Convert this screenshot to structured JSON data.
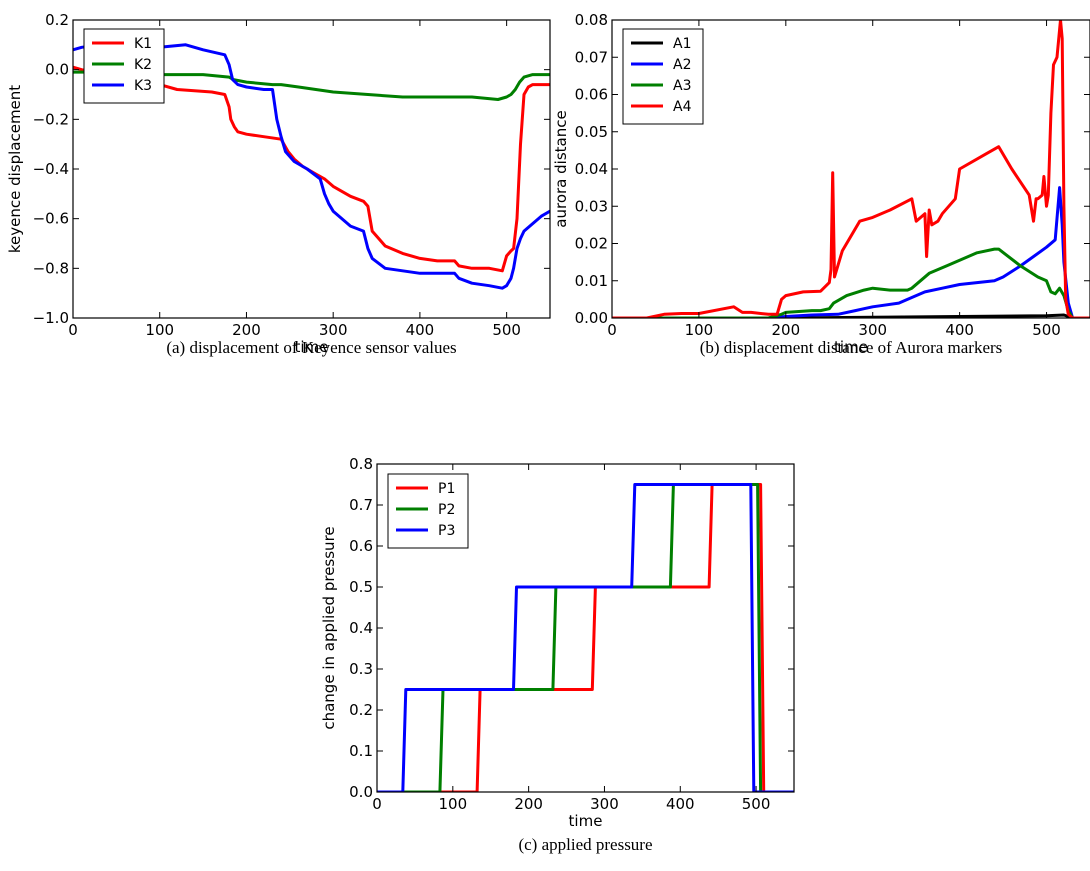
{
  "colors": {
    "red": "#ff0000",
    "green": "#007f00",
    "blue": "#0000ff",
    "black": "#000000"
  },
  "chart_data": [
    {
      "id": "a",
      "type": "line",
      "caption": "(a) displacement of Keyence sensor values",
      "xlabel": "time",
      "ylabel": "keyence displacement",
      "xlim": [
        0,
        550
      ],
      "ylim": [
        -1.0,
        0.2
      ],
      "xticks": [
        0,
        100,
        200,
        300,
        400,
        500
      ],
      "yticks": [
        -1.0,
        -0.8,
        -0.6,
        -0.4,
        -0.2,
        0.0,
        0.2
      ],
      "yfmt": 1,
      "legend": "top-left",
      "series": [
        {
          "name": "K1",
          "color": "red",
          "x": [
            0,
            10,
            40,
            80,
            100,
            120,
            160,
            175,
            180,
            182,
            186,
            190,
            200,
            220,
            240,
            248,
            255,
            265,
            280,
            290,
            300,
            320,
            335,
            340,
            345,
            360,
            380,
            400,
            420,
            440,
            445,
            460,
            480,
            495,
            500,
            505,
            508,
            512,
            516,
            520,
            525,
            530,
            540,
            550
          ],
          "y": [
            0.01,
            0.0,
            -0.02,
            -0.04,
            -0.06,
            -0.08,
            -0.09,
            -0.1,
            -0.15,
            -0.2,
            -0.23,
            -0.25,
            -0.26,
            -0.27,
            -0.28,
            -0.33,
            -0.36,
            -0.39,
            -0.42,
            -0.44,
            -0.47,
            -0.51,
            -0.53,
            -0.55,
            -0.65,
            -0.71,
            -0.74,
            -0.76,
            -0.77,
            -0.77,
            -0.79,
            -0.8,
            -0.8,
            -0.81,
            -0.75,
            -0.73,
            -0.72,
            -0.6,
            -0.3,
            -0.1,
            -0.07,
            -0.06,
            -0.06,
            -0.06
          ]
        },
        {
          "name": "K2",
          "color": "green",
          "x": [
            0,
            20,
            50,
            100,
            150,
            180,
            185,
            200,
            230,
            240,
            260,
            300,
            340,
            380,
            420,
            460,
            490,
            500,
            505,
            510,
            515,
            520,
            530,
            540,
            550
          ],
          "y": [
            -0.01,
            -0.01,
            -0.01,
            -0.02,
            -0.02,
            -0.03,
            -0.04,
            -0.05,
            -0.06,
            -0.06,
            -0.07,
            -0.09,
            -0.1,
            -0.11,
            -0.11,
            -0.11,
            -0.12,
            -0.11,
            -0.1,
            -0.08,
            -0.05,
            -0.03,
            -0.02,
            -0.02,
            -0.02
          ]
        },
        {
          "name": "K3",
          "color": "blue",
          "x": [
            0,
            10,
            30,
            60,
            100,
            130,
            150,
            175,
            180,
            184,
            190,
            200,
            220,
            230,
            235,
            240,
            245,
            255,
            270,
            285,
            290,
            295,
            300,
            320,
            335,
            340,
            345,
            360,
            380,
            400,
            440,
            445,
            460,
            480,
            495,
            500,
            505,
            508,
            512,
            516,
            520,
            530,
            540,
            550
          ],
          "y": [
            0.08,
            0.09,
            0.1,
            0.09,
            0.09,
            0.1,
            0.08,
            0.06,
            0.02,
            -0.04,
            -0.06,
            -0.07,
            -0.08,
            -0.08,
            -0.2,
            -0.27,
            -0.33,
            -0.37,
            -0.4,
            -0.44,
            -0.5,
            -0.54,
            -0.57,
            -0.63,
            -0.65,
            -0.72,
            -0.76,
            -0.8,
            -0.81,
            -0.82,
            -0.82,
            -0.84,
            -0.86,
            -0.87,
            -0.88,
            -0.87,
            -0.84,
            -0.8,
            -0.72,
            -0.68,
            -0.65,
            -0.62,
            -0.59,
            -0.57
          ]
        }
      ]
    },
    {
      "id": "b",
      "type": "line",
      "caption": "(b) displacement distance of Aurora markers",
      "xlabel": "time",
      "ylabel": "aurora distance",
      "xlim": [
        0,
        550
      ],
      "ylim": [
        0.0,
        0.08
      ],
      "xticks": [
        0,
        100,
        200,
        300,
        400,
        500
      ],
      "yticks": [
        0.0,
        0.01,
        0.02,
        0.03,
        0.04,
        0.05,
        0.06,
        0.07,
        0.08
      ],
      "yfmt": 2,
      "legend": "top-left",
      "series": [
        {
          "name": "A1",
          "color": "black",
          "x": [
            0,
            200,
            300,
            400,
            500,
            520,
            530,
            550
          ],
          "y": [
            0.0,
            0.0,
            0.0002,
            0.0004,
            0.0006,
            0.0008,
            0.0,
            0.0
          ]
        },
        {
          "name": "A2",
          "color": "blue",
          "x": [
            0,
            100,
            180,
            200,
            230,
            260,
            280,
            290,
            300,
            330,
            345,
            360,
            380,
            400,
            440,
            450,
            470,
            500,
            510,
            515,
            518,
            520,
            525,
            530,
            550
          ],
          "y": [
            0.0,
            0.0,
            0.0,
            0.0004,
            0.0008,
            0.001,
            0.002,
            0.0025,
            0.003,
            0.004,
            0.0055,
            0.007,
            0.008,
            0.009,
            0.01,
            0.011,
            0.014,
            0.019,
            0.021,
            0.035,
            0.025,
            0.015,
            0.004,
            0.0,
            0.0
          ]
        },
        {
          "name": "A3",
          "color": "green",
          "x": [
            0,
            180,
            195,
            200,
            230,
            240,
            250,
            255,
            270,
            290,
            300,
            320,
            340,
            345,
            365,
            385,
            395,
            420,
            440,
            445,
            470,
            490,
            500,
            505,
            510,
            515,
            520,
            525,
            530,
            550
          ],
          "y": [
            0.0,
            0.0,
            0.001,
            0.0015,
            0.002,
            0.002,
            0.0025,
            0.004,
            0.006,
            0.0075,
            0.008,
            0.0075,
            0.0075,
            0.008,
            0.012,
            0.014,
            0.015,
            0.0175,
            0.0185,
            0.0185,
            0.014,
            0.011,
            0.01,
            0.007,
            0.0065,
            0.008,
            0.006,
            0.002,
            0.0,
            0.0
          ]
        },
        {
          "name": "A4",
          "color": "red",
          "x": [
            0,
            40,
            60,
            80,
            100,
            140,
            150,
            160,
            180,
            190,
            195,
            200,
            220,
            240,
            250,
            252,
            254,
            256,
            265,
            285,
            300,
            320,
            345,
            350,
            360,
            362,
            365,
            368,
            375,
            380,
            395,
            400,
            430,
            445,
            460,
            480,
            485,
            488,
            490,
            495,
            497,
            500,
            502,
            505,
            508,
            512,
            516,
            518,
            520,
            522,
            525,
            530,
            550
          ],
          "y": [
            0.0,
            0.0,
            0.001,
            0.0012,
            0.0012,
            0.003,
            0.0015,
            0.0015,
            0.001,
            0.001,
            0.005,
            0.006,
            0.007,
            0.0072,
            0.0095,
            0.013,
            0.039,
            0.011,
            0.018,
            0.026,
            0.027,
            0.029,
            0.032,
            0.026,
            0.028,
            0.0165,
            0.029,
            0.025,
            0.026,
            0.028,
            0.032,
            0.04,
            0.044,
            0.046,
            0.04,
            0.033,
            0.026,
            0.032,
            0.032,
            0.033,
            0.038,
            0.03,
            0.033,
            0.055,
            0.068,
            0.07,
            0.08,
            0.075,
            0.03,
            0.005,
            0.001,
            0.0,
            0.0
          ]
        }
      ]
    },
    {
      "id": "c",
      "type": "line",
      "caption": "(c) applied pressure",
      "xlabel": "time",
      "ylabel": "change in applied pressure",
      "xlim": [
        0,
        550
      ],
      "ylim": [
        0.0,
        0.8
      ],
      "xticks": [
        0,
        100,
        200,
        300,
        400,
        500
      ],
      "yticks": [
        0.0,
        0.1,
        0.2,
        0.3,
        0.4,
        0.5,
        0.6,
        0.7,
        0.8
      ],
      "yfmt": 1,
      "legend": "top-left",
      "series": [
        {
          "name": "P1",
          "color": "red",
          "x": [
            0,
            132,
            136,
            284,
            288,
            438,
            442,
            506,
            510,
            550
          ],
          "y": [
            0.0,
            0.0,
            0.25,
            0.25,
            0.5,
            0.5,
            0.75,
            0.75,
            0.0,
            0.0
          ]
        },
        {
          "name": "P2",
          "color": "green",
          "x": [
            0,
            83,
            87,
            232,
            236,
            387,
            391,
            502,
            506,
            550
          ],
          "y": [
            0.0,
            0.0,
            0.25,
            0.25,
            0.5,
            0.5,
            0.75,
            0.75,
            0.0,
            0.0
          ]
        },
        {
          "name": "P3",
          "color": "blue",
          "x": [
            0,
            34,
            38,
            180,
            184,
            336,
            340,
            493,
            497,
            550
          ],
          "y": [
            0.0,
            0.0,
            0.25,
            0.25,
            0.5,
            0.5,
            0.75,
            0.75,
            0.0,
            0.0
          ]
        }
      ]
    }
  ]
}
